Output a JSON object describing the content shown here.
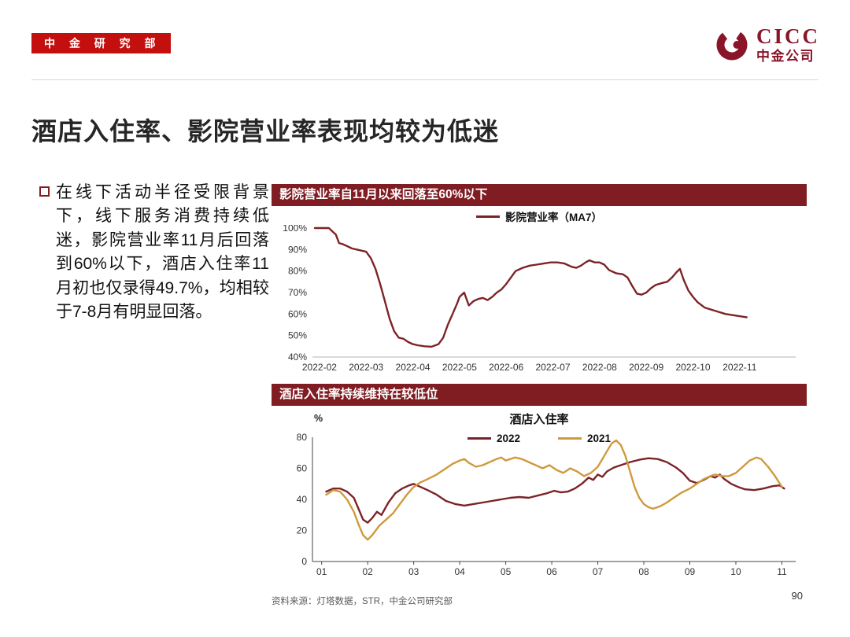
{
  "header": {
    "badge_label": "中 金 研 究 部",
    "logo_name": "CICC",
    "logo_cn": "中金公司"
  },
  "page_title": "酒店入住率、影院营业率表现均较为低迷",
  "bullet_text": "在线下活动半径受限背景下，线下服务消费持续低迷，影院营业率11月后回落到60%以下，酒店入住率11月初也仅录得49.7%，均相较于7-8月有明显回落。",
  "footer": {
    "source": "资料来源：灯塔数据，STR，中金公司研究部",
    "page_number": "90"
  },
  "colors": {
    "badge_red": "#c40f0f",
    "panel_maroon": "#7f1d23",
    "logo_red": "#8a1428",
    "series_dark_red": "#7c2328",
    "series_orange": "#cf9a3e"
  },
  "chart_data": [
    {
      "type": "line",
      "panel_title": "影院营业率自11月以来回落至60%以下",
      "legend": [
        {
          "label": "影院营业率（MA7）",
          "color": "#7c2328"
        }
      ],
      "xlim": [
        1.85,
        12.2
      ],
      "ylim": [
        40,
        100
      ],
      "x_ticks": [
        {
          "v": 2,
          "label": "2022-02"
        },
        {
          "v": 3,
          "label": "2022-03"
        },
        {
          "v": 4,
          "label": "2022-04"
        },
        {
          "v": 5,
          "label": "2022-05"
        },
        {
          "v": 6,
          "label": "2022-06"
        },
        {
          "v": 7,
          "label": "2022-07"
        },
        {
          "v": 8,
          "label": "2022-08"
        },
        {
          "v": 9,
          "label": "2022-09"
        },
        {
          "v": 10,
          "label": "2022-10"
        },
        {
          "v": 11,
          "label": "2022-11"
        }
      ],
      "y_ticks": [
        {
          "v": 40,
          "label": "40%"
        },
        {
          "v": 50,
          "label": "50%"
        },
        {
          "v": 60,
          "label": "60%"
        },
        {
          "v": 70,
          "label": "70%"
        },
        {
          "v": 80,
          "label": "80%"
        },
        {
          "v": 90,
          "label": "90%"
        },
        {
          "v": 100,
          "label": "100%"
        }
      ],
      "axes": {
        "left": false,
        "bottom": true,
        "tick_marks": false
      },
      "series": [
        {
          "name": "影院营业率（MA7）",
          "color": "#7c2328",
          "x": [
            1.9,
            2.05,
            2.2,
            2.35,
            2.42,
            2.5,
            2.6,
            2.7,
            2.8,
            2.9,
            3.0,
            3.1,
            3.2,
            3.3,
            3.4,
            3.5,
            3.6,
            3.7,
            3.8,
            3.9,
            4.0,
            4.1,
            4.25,
            4.4,
            4.55,
            4.65,
            4.75,
            4.85,
            4.95,
            5.0,
            5.1,
            5.2,
            5.3,
            5.4,
            5.5,
            5.6,
            5.7,
            5.8,
            5.9,
            6.0,
            6.1,
            6.2,
            6.35,
            6.5,
            6.65,
            6.8,
            6.95,
            7.1,
            7.25,
            7.4,
            7.5,
            7.6,
            7.7,
            7.78,
            7.9,
            8.0,
            8.1,
            8.2,
            8.35,
            8.5,
            8.6,
            8.7,
            8.8,
            8.9,
            9.0,
            9.1,
            9.2,
            9.35,
            9.45,
            9.55,
            9.65,
            9.72,
            9.8,
            9.9,
            10.0,
            10.1,
            10.25,
            10.4,
            10.55,
            10.7,
            10.85,
            11.0,
            11.15
          ],
          "y": [
            100,
            100,
            100,
            97,
            93,
            92.5,
            91.5,
            90.5,
            90,
            89.5,
            89,
            86,
            81,
            74,
            66,
            58,
            52,
            49,
            48.5,
            47,
            46,
            45.5,
            45,
            44.8,
            46,
            49,
            55,
            60,
            65,
            68,
            70,
            64,
            66,
            67,
            67.5,
            66.5,
            68,
            70,
            71.5,
            74,
            77,
            80,
            81.5,
            82.5,
            83,
            83.5,
            84,
            84,
            83.5,
            82,
            81.5,
            82.5,
            84,
            85,
            84,
            84,
            83,
            80.5,
            79,
            78.5,
            77,
            73,
            69.5,
            69,
            70,
            72,
            73.5,
            74.5,
            75,
            77,
            79.5,
            81,
            76,
            71,
            68,
            65.5,
            63,
            62,
            61,
            60,
            59.5,
            59,
            58.5
          ]
        }
      ]
    },
    {
      "type": "line",
      "panel_title": "酒店入住率持续维持在较低位",
      "chart_title": "酒店入住率",
      "y_unit": "%",
      "legend": [
        {
          "label": "2022",
          "color": "#7c2328"
        },
        {
          "label": "2021",
          "color": "#cf9a3e"
        }
      ],
      "xlim": [
        0.8,
        11.3
      ],
      "ylim": [
        0,
        80
      ],
      "x_ticks": [
        {
          "v": 1,
          "label": "01"
        },
        {
          "v": 2,
          "label": "02"
        },
        {
          "v": 3,
          "label": "03"
        },
        {
          "v": 4,
          "label": "04"
        },
        {
          "v": 5,
          "label": "05"
        },
        {
          "v": 6,
          "label": "06"
        },
        {
          "v": 7,
          "label": "07"
        },
        {
          "v": 8,
          "label": "08"
        },
        {
          "v": 9,
          "label": "09"
        },
        {
          "v": 10,
          "label": "10"
        },
        {
          "v": 11,
          "label": "11"
        }
      ],
      "y_ticks": [
        {
          "v": 0,
          "label": "0"
        },
        {
          "v": 20,
          "label": "20"
        },
        {
          "v": 40,
          "label": "40"
        },
        {
          "v": 60,
          "label": "60"
        },
        {
          "v": 80,
          "label": "80"
        }
      ],
      "axes": {
        "left": true,
        "bottom": true,
        "tick_marks": true
      },
      "series": [
        {
          "name": "2022",
          "color": "#7c2328",
          "x": [
            1.1,
            1.25,
            1.4,
            1.55,
            1.7,
            1.8,
            1.9,
            2.0,
            2.1,
            2.2,
            2.3,
            2.45,
            2.6,
            2.75,
            2.9,
            3.0,
            3.15,
            3.3,
            3.5,
            3.7,
            3.9,
            4.1,
            4.3,
            4.5,
            4.7,
            4.9,
            5.1,
            5.3,
            5.5,
            5.7,
            5.9,
            6.05,
            6.2,
            6.35,
            6.5,
            6.65,
            6.8,
            6.9,
            7.0,
            7.1,
            7.2,
            7.35,
            7.5,
            7.7,
            7.9,
            8.1,
            8.3,
            8.5,
            8.7,
            8.85,
            9.0,
            9.15,
            9.3,
            9.45,
            9.55,
            9.65,
            9.75,
            9.9,
            10.05,
            10.2,
            10.4,
            10.6,
            10.8,
            10.95,
            11.05
          ],
          "y": [
            45,
            47,
            47,
            45,
            41,
            34,
            27,
            25,
            28,
            32,
            30,
            38,
            44,
            47,
            49,
            50,
            48,
            46,
            43,
            39,
            37,
            36,
            37,
            38,
            39,
            40,
            41,
            41.5,
            41,
            42.5,
            44,
            45.5,
            44.5,
            45,
            47,
            50,
            54,
            52.5,
            56,
            54.5,
            58,
            60.5,
            62,
            64,
            65.5,
            66.5,
            66,
            64,
            60.5,
            57,
            52,
            50.5,
            52.5,
            55,
            54,
            56,
            53,
            50,
            48,
            46.5,
            46,
            47,
            48.5,
            49,
            47
          ]
        },
        {
          "name": "2021",
          "color": "#cf9a3e",
          "x": [
            1.1,
            1.25,
            1.4,
            1.55,
            1.7,
            1.8,
            1.9,
            2.0,
            2.1,
            2.25,
            2.4,
            2.55,
            2.7,
            2.85,
            3.0,
            3.15,
            3.3,
            3.5,
            3.7,
            3.85,
            4.0,
            4.1,
            4.2,
            4.35,
            4.5,
            4.65,
            4.8,
            4.9,
            5.0,
            5.1,
            5.2,
            5.35,
            5.5,
            5.65,
            5.8,
            5.95,
            6.1,
            6.25,
            6.4,
            6.55,
            6.7,
            6.85,
            7.0,
            7.1,
            7.2,
            7.3,
            7.4,
            7.5,
            7.6,
            7.7,
            7.8,
            7.9,
            8.0,
            8.1,
            8.2,
            8.35,
            8.5,
            8.65,
            8.8,
            9.0,
            9.15,
            9.3,
            9.45,
            9.55,
            9.7,
            9.85,
            10.0,
            10.15,
            10.3,
            10.45,
            10.55,
            10.7,
            10.85,
            11.0
          ],
          "y": [
            43,
            46,
            45,
            40,
            32,
            24,
            17,
            14,
            17,
            23,
            27,
            31,
            37,
            43,
            48,
            51,
            53,
            56,
            60,
            63,
            65,
            66,
            63.5,
            61,
            62,
            64,
            66,
            67,
            65,
            66,
            67,
            66,
            64,
            62,
            60,
            62,
            59,
            57,
            60,
            58,
            55,
            57,
            61,
            66,
            71,
            76,
            78,
            75,
            68,
            58,
            48,
            41,
            37,
            35,
            34,
            35.5,
            38,
            41,
            44,
            47,
            50,
            53,
            55,
            56,
            55,
            55,
            57,
            61,
            65,
            67,
            66,
            61,
            55,
            48
          ]
        }
      ]
    }
  ]
}
